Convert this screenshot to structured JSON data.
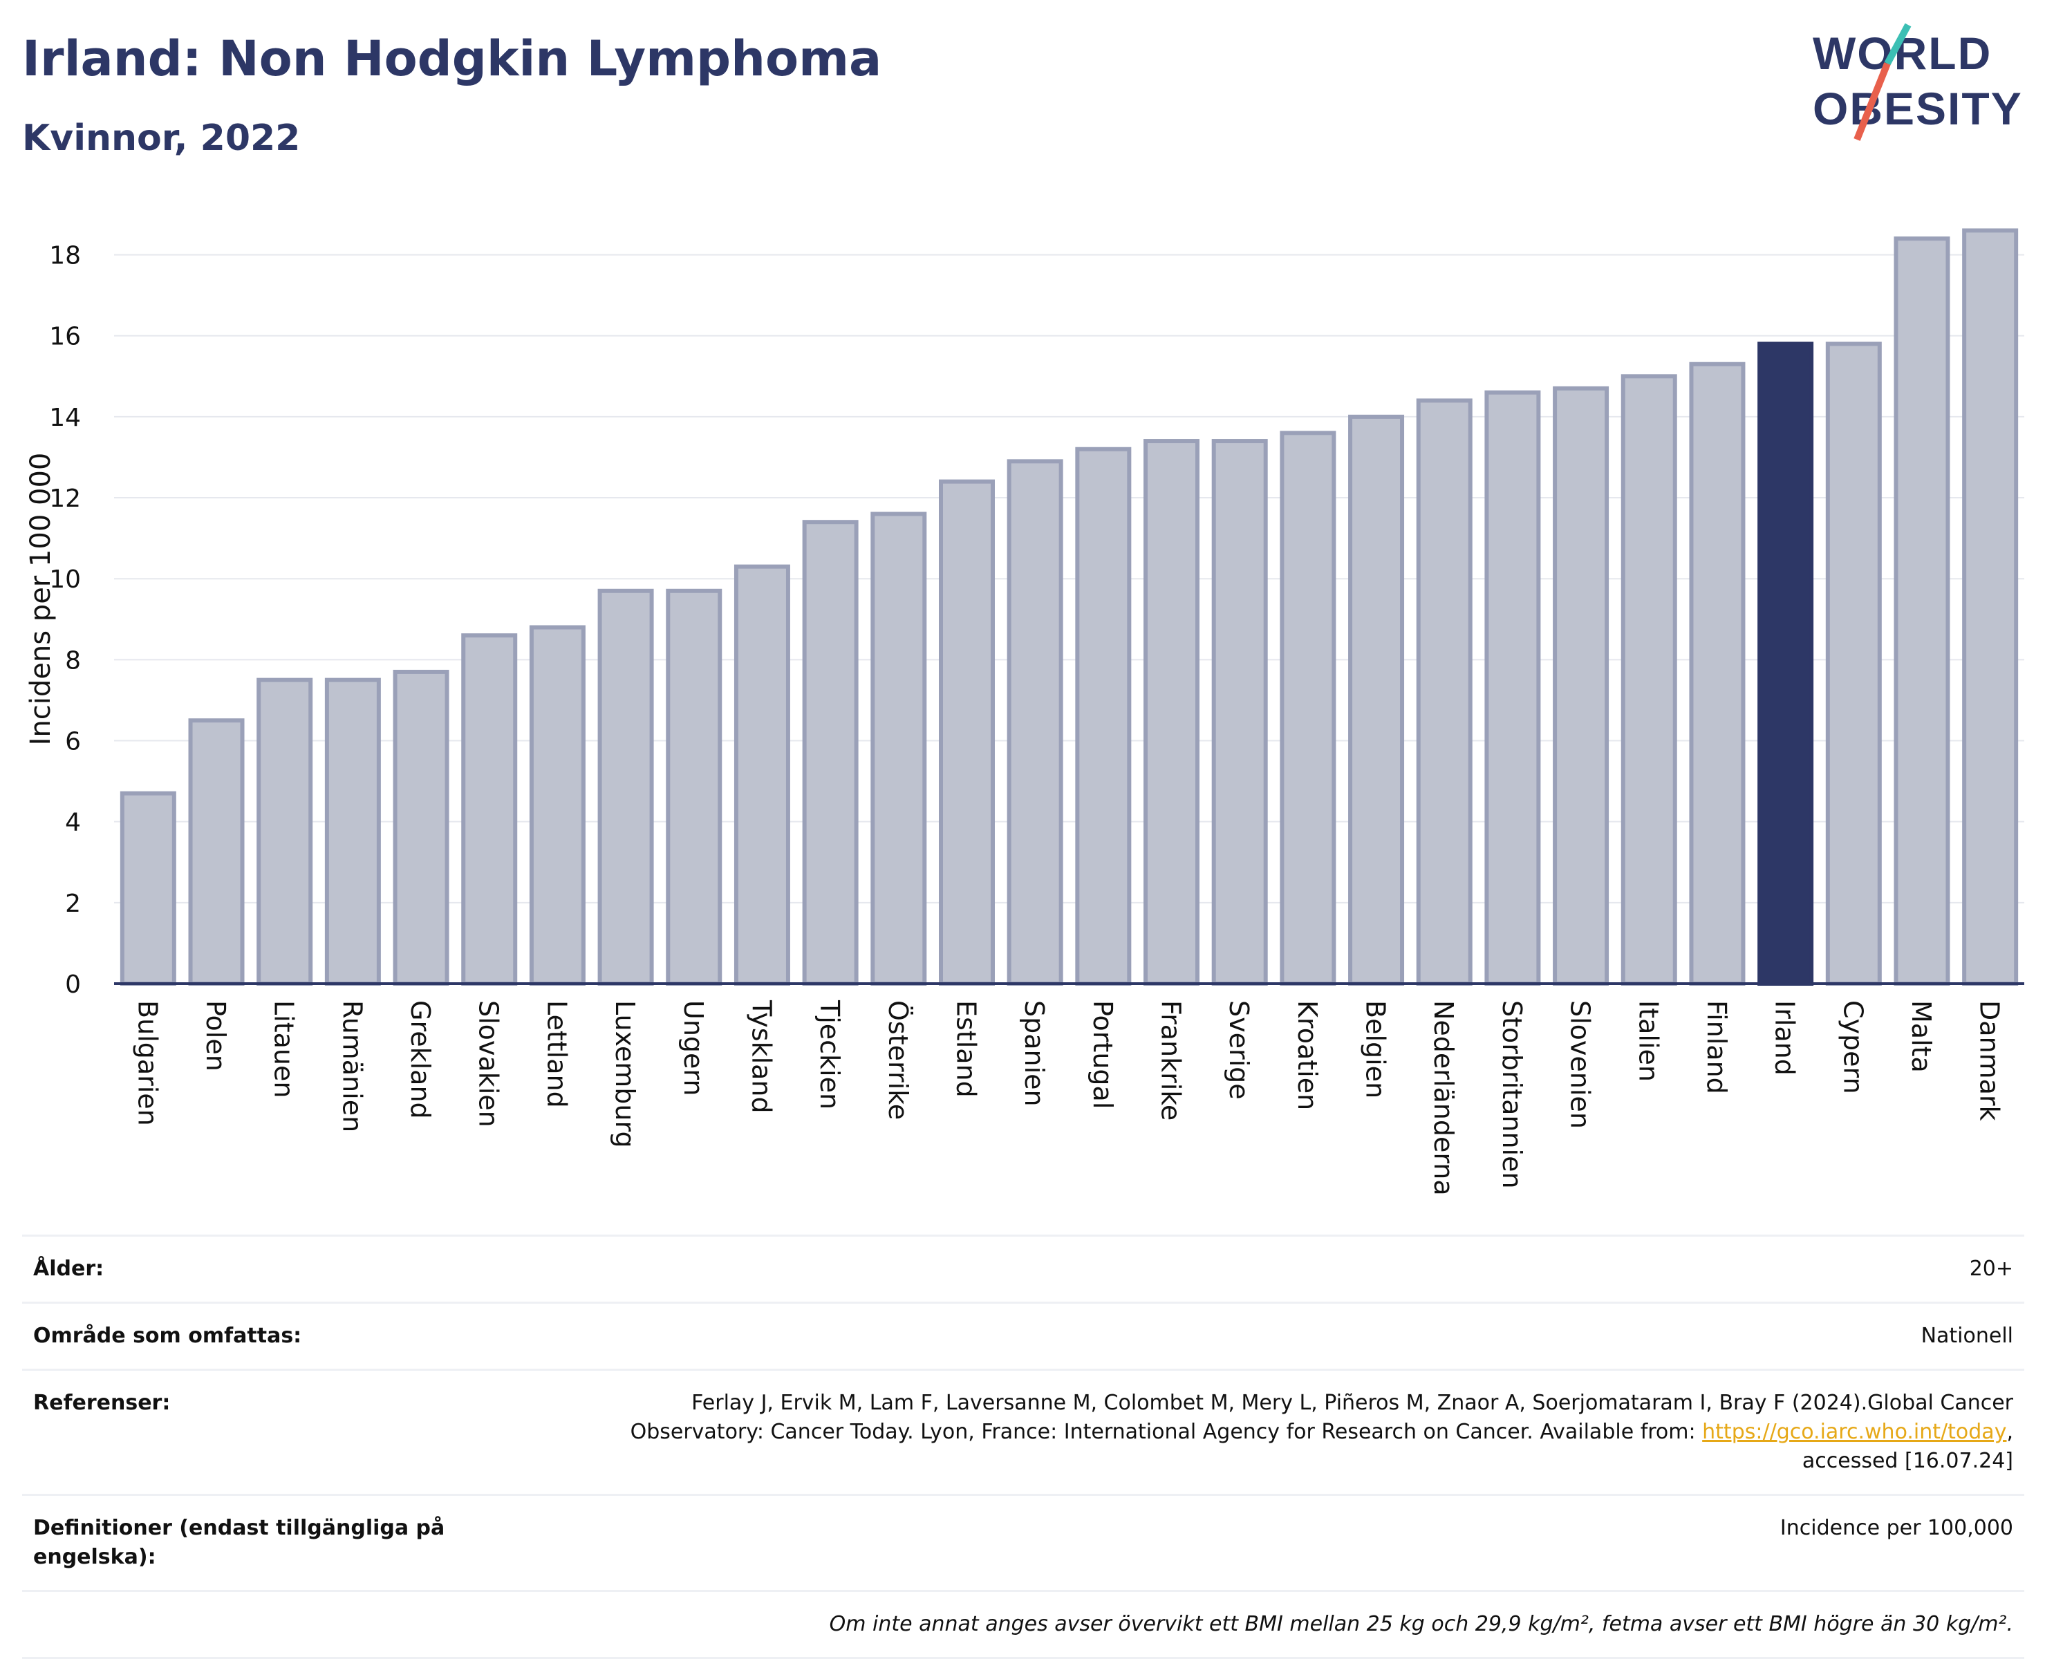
{
  "header": {
    "title": "Irland: Non Hodgkin Lymphoma",
    "subtitle": "Kvinnor, 2022"
  },
  "logo": {
    "line1": "WORLD",
    "line2": "OBESITY"
  },
  "colors": {
    "bar": "#bec2cf",
    "bar_border": "#9aa0b8",
    "highlight": "#2d3766",
    "title": "#2d3766",
    "logo_accent_teal": "#3cbfb4",
    "logo_accent_red": "#e8604c",
    "link": "#e6a817",
    "grid": "#e6e8ee"
  },
  "chart_data": {
    "type": "bar",
    "ylabel": "Incidens per 100 000",
    "ylim": [
      0,
      19
    ],
    "yticks": [
      0,
      2,
      4,
      6,
      8,
      10,
      12,
      14,
      16,
      18
    ],
    "grid": true,
    "highlight": "Irland",
    "categories": [
      "Bulgarien",
      "Polen",
      "Litauen",
      "Rumänien",
      "Grekland",
      "Slovakien",
      "Lettland",
      "Luxemburg",
      "Ungern",
      "Tyskland",
      "Tjeckien",
      "Österrike",
      "Estland",
      "Spanien",
      "Portugal",
      "Frankrike",
      "Sverige",
      "Kroatien",
      "Belgien",
      "Nederländerna",
      "Storbritannien",
      "Slovenien",
      "Italien",
      "Finland",
      "Irland",
      "Cypern",
      "Malta",
      "Danmark"
    ],
    "values": [
      4.7,
      6.5,
      7.5,
      7.5,
      7.7,
      8.6,
      8.8,
      9.7,
      9.7,
      10.3,
      11.4,
      11.6,
      12.4,
      12.9,
      13.2,
      13.4,
      13.4,
      13.6,
      14.0,
      14.4,
      14.6,
      14.7,
      15.0,
      15.3,
      15.8,
      15.8,
      18.4,
      18.6
    ]
  },
  "meta": {
    "age_label": "Ålder:",
    "age_value": "20+",
    "area_label": "Område som omfattas:",
    "area_value": "Nationell",
    "refs_label": "Referenser:",
    "refs_text1": "Ferlay J, Ervik M, Lam F, Laversanne M, Colombet M, Mery L, Piñeros M, Znaor A, Soerjomataram I, Bray F (2024).Global Cancer",
    "refs_text2": "Observatory: Cancer Today. Lyon, France: International Agency for Research on Cancer. Available from: ",
    "refs_link": "https://gco.iarc.who.int/today",
    "refs_text3": ",",
    "refs_text4": "accessed [16.07.24]",
    "defs_label": "Definitioner (endast tillgängliga på engelska):",
    "defs_value": "Incidence per 100,000",
    "footnote": "Om inte annat anges avser övervikt ett BMI mellan 25 kg och 29,9 kg/m², fetma avser ett BMI högre än 30 kg/m²."
  }
}
